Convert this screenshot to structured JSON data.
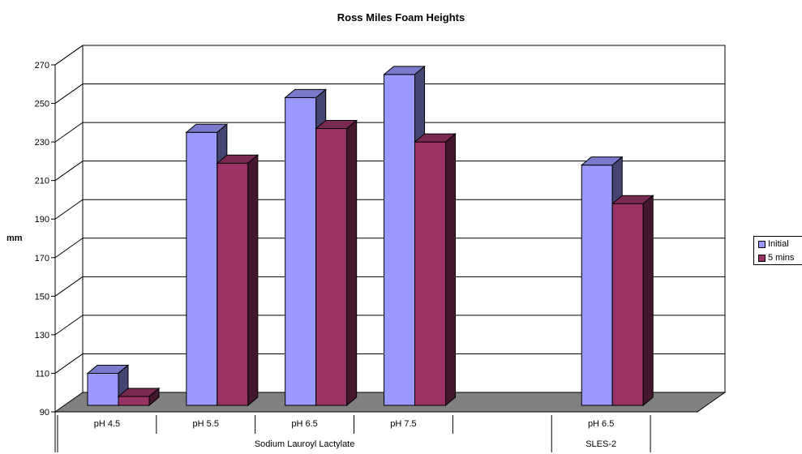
{
  "chart_data": {
    "type": "bar",
    "title": "Ross Miles Foam Heights",
    "xlabel": "",
    "ylabel": "mm",
    "ylim": [
      90,
      270
    ],
    "yticks": [
      90,
      110,
      130,
      150,
      170,
      190,
      210,
      230,
      250,
      270
    ],
    "categories": [
      "pH 4.5",
      "pH 5.5",
      "pH 6.5",
      "pH 7.5",
      "",
      "pH 6.5"
    ],
    "groups": [
      {
        "label": "Sodium Lauroyl Lactylate",
        "span": [
          0,
          4
        ]
      },
      {
        "label": "SLES-2",
        "span": [
          5,
          5
        ]
      }
    ],
    "series": [
      {
        "name": "Initial",
        "color": "#9999ff",
        "values": [
          110,
          235,
          253,
          265,
          null,
          218
        ]
      },
      {
        "name": "5 mins",
        "color": "#993366",
        "values": [
          98,
          219,
          237,
          230,
          null,
          198
        ]
      }
    ],
    "grid": true,
    "legend": "right"
  }
}
